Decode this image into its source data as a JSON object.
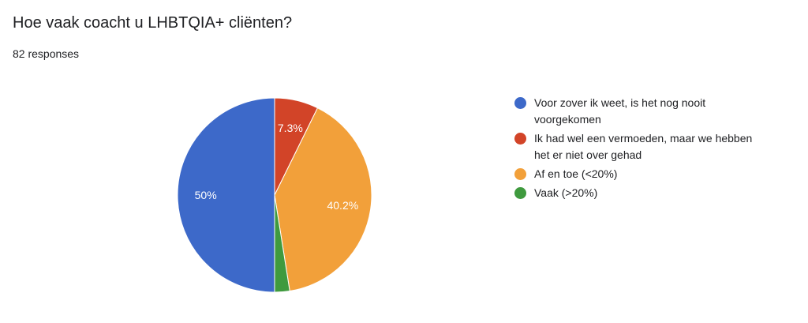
{
  "header": {
    "title": "Hoe vaak coacht u LHBTQIA+ cliënten?",
    "responses": "82 responses"
  },
  "chart_data": {
    "type": "pie",
    "title": "Hoe vaak coacht u LHBTQIA+ cliënten?",
    "subtitle": "82 responses",
    "legend_position": "right",
    "slices": [
      {
        "label": "Voor zover ik weet, is het nog nooit voorgekomen",
        "value": 50.0,
        "display": "50%",
        "color": "#3d69c9"
      },
      {
        "label": "Ik had wel een vermoeden, maar we hebben het er niet over gehad",
        "value": 7.3,
        "display": "7.3%",
        "color": "#d24428"
      },
      {
        "label": "Af en toe (<20%)",
        "value": 40.2,
        "display": "40.2%",
        "color": "#f2a03a"
      },
      {
        "label": "Vaak (>20%)",
        "value": 2.5,
        "display": "",
        "color": "#3f9a3e"
      }
    ]
  }
}
